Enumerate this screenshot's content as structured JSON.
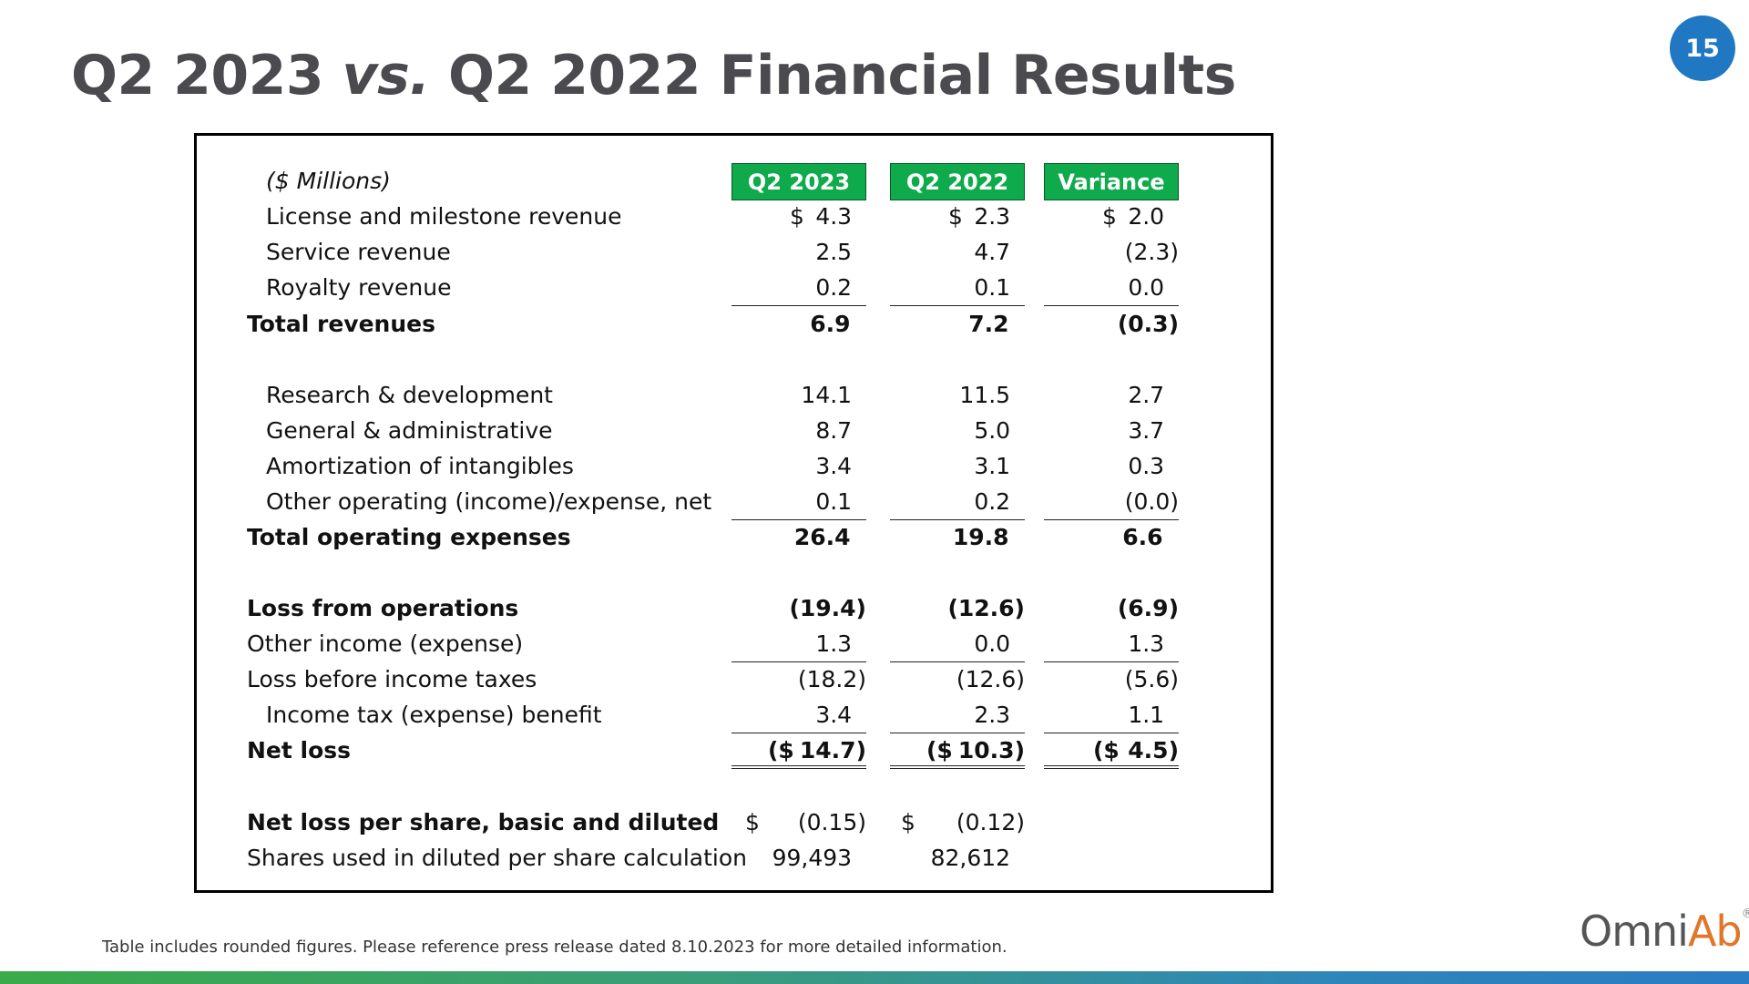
{
  "page_number": "15",
  "title": {
    "part1": "Q2 2023 ",
    "vs": "vs.",
    "part2": " Q2 2022 Financial Results"
  },
  "colors": {
    "header_green": "#0eaa4b",
    "badge_blue": "#1f78c1",
    "title_gray": "#4a4a4f",
    "logo_orange": "#e0762a"
  },
  "table": {
    "units_label": "($ Millions)",
    "columns": [
      "Q2 2023",
      "Q2 2022",
      "Variance"
    ],
    "rows": {
      "license": {
        "label": "License and milestone revenue",
        "dollar": "$",
        "v": [
          "4.3",
          "2.3",
          "2.0"
        ]
      },
      "service": {
        "label": "Service revenue",
        "v": [
          "2.5",
          "4.7",
          "(2.3)"
        ]
      },
      "royalty": {
        "label": "Royalty revenue",
        "v": [
          "0.2",
          "0.1",
          "0.0"
        ]
      },
      "total_rev": {
        "label": "Total revenues",
        "v": [
          "6.9",
          "7.2",
          "(0.3)"
        ]
      },
      "rnd": {
        "label": "Research & development",
        "v": [
          "14.1",
          "11.5",
          "2.7"
        ]
      },
      "gna": {
        "label": "General & administrative",
        "v": [
          "8.7",
          "5.0",
          "3.7"
        ]
      },
      "amort": {
        "label": "Amortization of intangibles",
        "v": [
          "3.4",
          "3.1",
          "0.3"
        ]
      },
      "other_op": {
        "label": "Other operating (income)/expense, net",
        "v": [
          "0.1",
          "0.2",
          "(0.0)"
        ]
      },
      "total_opex": {
        "label": "Total operating expenses",
        "v": [
          "26.4",
          "19.8",
          "6.6"
        ]
      },
      "loss_ops": {
        "label": "Loss from operations",
        "v": [
          "(19.4)",
          "(12.6)",
          "(6.9)"
        ]
      },
      "other_inc": {
        "label": "Other income (expense)",
        "v": [
          "1.3",
          "0.0",
          "1.3"
        ]
      },
      "loss_before_tax": {
        "label": "Loss before income taxes",
        "v": [
          "(18.2)",
          "(12.6)",
          "(5.6)"
        ]
      },
      "tax": {
        "label": "Income tax (expense) benefit",
        "v": [
          "3.4",
          "2.3",
          "1.1"
        ]
      },
      "net_loss": {
        "label": "Net loss",
        "prefix": "($",
        "v": [
          "14.7)",
          "10.3)",
          "4.5)"
        ]
      },
      "eps": {
        "label": "Net loss per share, basic and diluted",
        "dollar": "$",
        "v": [
          "(0.15)",
          "(0.12)"
        ]
      },
      "shares": {
        "label": "Shares used in diluted per share calculation",
        "v": [
          "99,493",
          "82,612"
        ]
      }
    }
  },
  "footnote": "Table includes rounded figures.  Please reference press release dated 8.10.2023 for more detailed information.",
  "logo": {
    "text_main": "Omni",
    "text_accent": "Ab",
    "mark": "®"
  }
}
